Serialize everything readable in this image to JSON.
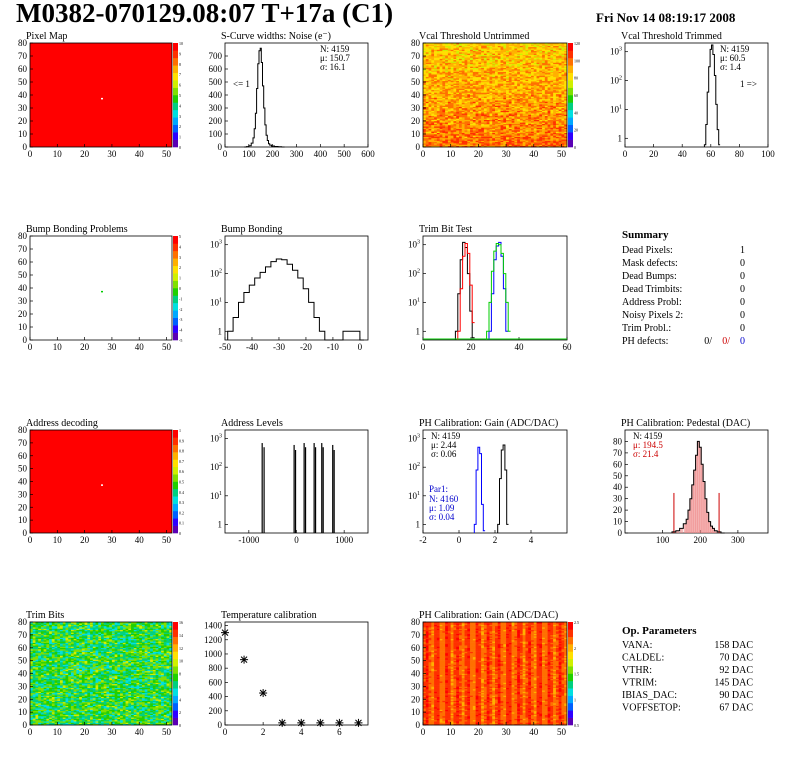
{
  "header": {
    "title": "M0382-070129.08:07 T+17a (C1)",
    "date": "Fri Nov 14 08:19:17 2008"
  },
  "panels": [
    {
      "id": "pixel-map",
      "title": "Pixel Map",
      "type": "heatmap",
      "fill": "red",
      "xlim": [
        0,
        52
      ],
      "ylim": [
        0,
        80
      ],
      "xticks": [
        0,
        10,
        20,
        30,
        40,
        50
      ],
      "yticks": [
        0,
        10,
        20,
        30,
        40,
        50,
        60,
        70,
        80
      ],
      "palette_ticks": [
        10,
        9,
        8,
        7,
        6,
        5,
        4,
        3,
        2,
        1,
        0
      ],
      "marks": [
        {
          "x": 26,
          "y": 37,
          "color": "#ffffff"
        }
      ]
    },
    {
      "id": "scurve-noise",
      "title": "S-Curve widths: Noise (e⁻)",
      "type": "histogram",
      "scale": "linear",
      "xlim": [
        0,
        600
      ],
      "ylim": [
        0,
        800
      ],
      "xticks": [
        0,
        100,
        200,
        300,
        400,
        500,
        600
      ],
      "yticks": [
        0,
        100,
        200,
        300,
        400,
        500,
        600,
        700
      ],
      "stats": [
        "N: 4159",
        "μ: 150.7",
        "σ: 16.1"
      ],
      "note": "<= 1",
      "bins": [
        [
          85,
          0
        ],
        [
          95,
          3
        ],
        [
          105,
          10
        ],
        [
          115,
          30
        ],
        [
          120,
          70
        ],
        [
          125,
          140
        ],
        [
          130,
          260
        ],
        [
          135,
          450
        ],
        [
          140,
          640
        ],
        [
          145,
          740
        ],
        [
          150,
          760
        ],
        [
          155,
          650
        ],
        [
          160,
          470
        ],
        [
          165,
          300
        ],
        [
          170,
          170
        ],
        [
          175,
          90
        ],
        [
          180,
          50
        ],
        [
          185,
          25
        ],
        [
          190,
          15
        ],
        [
          200,
          8
        ],
        [
          215,
          4
        ],
        [
          230,
          2
        ],
        [
          245,
          0
        ]
      ]
    },
    {
      "id": "vcal-untrimmed",
      "title": "Vcal Threshold Untrimmed",
      "type": "heatmap",
      "fill": "orange",
      "xlim": [
        0,
        52
      ],
      "ylim": [
        0,
        80
      ],
      "xticks": [
        0,
        10,
        20,
        30,
        40,
        50
      ],
      "yticks": [
        0,
        10,
        20,
        30,
        40,
        50,
        60,
        70,
        80
      ],
      "palette_ticks": [
        120,
        100,
        80,
        60,
        40,
        20,
        0
      ]
    },
    {
      "id": "vcal-trimmed",
      "title": "Vcal Threshold Trimmed",
      "type": "histogram",
      "scale": "log",
      "xlim": [
        0,
        100
      ],
      "ylim": [
        0.5,
        2000
      ],
      "xticks": [
        0,
        20,
        40,
        60,
        80,
        100
      ],
      "yticks": [
        1,
        10,
        100,
        1000
      ],
      "stats": [
        "N: 4159",
        "μ: 60.5",
        "σ: 1.4"
      ],
      "note": "1 =>",
      "bins": [
        [
          56,
          0.6
        ],
        [
          57,
          3
        ],
        [
          58,
          40
        ],
        [
          59,
          300
        ],
        [
          60,
          1200
        ],
        [
          61,
          1700
        ],
        [
          62,
          800
        ],
        [
          63,
          150
        ],
        [
          64,
          15
        ],
        [
          65,
          2
        ],
        [
          66,
          0.6
        ]
      ]
    },
    {
      "id": "bump-problems",
      "title": "Bump Bonding Problems",
      "type": "heatmap",
      "fill": "white",
      "xlim": [
        0,
        52
      ],
      "ylim": [
        0,
        80
      ],
      "xticks": [
        0,
        10,
        20,
        30,
        40,
        50
      ],
      "yticks": [
        0,
        10,
        20,
        30,
        40,
        50,
        60,
        70,
        80
      ],
      "palette_ticks": [
        5,
        4,
        3,
        2,
        1,
        0,
        -1,
        -2,
        -3,
        -4,
        -5
      ],
      "marks": [
        {
          "x": 26,
          "y": 37,
          "color": "#00cc00"
        }
      ]
    },
    {
      "id": "bump-bonding",
      "title": "Bump Bonding",
      "type": "histogram",
      "scale": "log",
      "xlim": [
        -50,
        3
      ],
      "ylim": [
        0.5,
        2000
      ],
      "xticks": [
        -50,
        -40,
        -30,
        -20,
        -10,
        0
      ],
      "yticks": [
        1,
        10,
        100,
        1000
      ],
      "bins": [
        [
          -48,
          1
        ],
        [
          -46,
          3
        ],
        [
          -44,
          10
        ],
        [
          -42,
          22
        ],
        [
          -40,
          40
        ],
        [
          -38,
          70
        ],
        [
          -36,
          110
        ],
        [
          -34,
          170
        ],
        [
          -32,
          260
        ],
        [
          -30,
          320
        ],
        [
          -28,
          300
        ],
        [
          -26,
          210
        ],
        [
          -24,
          130
        ],
        [
          -22,
          70
        ],
        [
          -20,
          30
        ],
        [
          -18,
          10
        ],
        [
          -16,
          3
        ],
        [
          -14,
          1
        ],
        [
          -12,
          0.5
        ],
        [
          -0.5,
          1
        ],
        [
          0.5,
          0.5
        ]
      ]
    },
    {
      "id": "trim-bit-test",
      "title": "Trim Bit Test",
      "type": "multi-histogram",
      "scale": "log",
      "xlim": [
        0,
        60
      ],
      "ylim": [
        0.5,
        2000
      ],
      "xticks": [
        0,
        20,
        40,
        60
      ],
      "yticks": [
        1,
        10,
        100,
        1000
      ],
      "series": [
        {
          "color": "#000000",
          "bins": [
            [
              14,
              1
            ],
            [
              15,
              20
            ],
            [
              16,
              300
            ],
            [
              17,
              1200
            ],
            [
              18,
              800
            ],
            [
              19,
              100
            ],
            [
              20,
              5
            ],
            [
              21,
              0.6
            ]
          ]
        },
        {
          "color": "#ff0000",
          "bins": [
            [
              15,
              1
            ],
            [
              16,
              30
            ],
            [
              17,
              400
            ],
            [
              18,
              1100
            ],
            [
              19,
              500
            ],
            [
              20,
              40
            ],
            [
              21,
              2
            ]
          ]
        },
        {
          "color": "#0000ff",
          "bins": [
            [
              28,
              1
            ],
            [
              29,
              20
            ],
            [
              30,
              300
            ],
            [
              31,
              900
            ],
            [
              32,
              1200
            ],
            [
              33,
              400
            ],
            [
              34,
              30
            ],
            [
              35,
              1
            ]
          ]
        },
        {
          "color": "#00cc00",
          "bins": [
            [
              27,
              1
            ],
            [
              28,
              10
            ],
            [
              29,
              120
            ],
            [
              30,
              600
            ],
            [
              31,
              1100
            ],
            [
              32,
              1000
            ],
            [
              33,
              500
            ],
            [
              34,
              100
            ],
            [
              35,
              10
            ],
            [
              36,
              1
            ]
          ]
        }
      ]
    },
    {
      "id": "address-decoding",
      "title": "Address decoding",
      "type": "heatmap",
      "fill": "red",
      "xlim": [
        0,
        52
      ],
      "ylim": [
        0,
        80
      ],
      "xticks": [
        0,
        10,
        20,
        30,
        40,
        50
      ],
      "yticks": [
        0,
        10,
        20,
        30,
        40,
        50,
        60,
        70,
        80
      ],
      "palette_ticks": [
        1,
        0.9,
        0.8,
        0.7,
        0.6,
        0.5,
        0.4,
        0.3,
        0.2,
        0.1,
        0
      ],
      "marks": [
        {
          "x": 26,
          "y": 37,
          "color": "#ffffff"
        }
      ]
    },
    {
      "id": "address-levels",
      "title": "Address Levels",
      "type": "spikes",
      "scale": "log",
      "xlim": [
        -1500,
        1500
      ],
      "ylim": [
        0.5,
        2000
      ],
      "xticks": [
        -1000,
        0,
        1000
      ],
      "yticks": [
        1,
        10,
        100,
        1000
      ],
      "spikes": [
        [
          -720,
          700
        ],
        [
          -680,
          500
        ],
        [
          -50,
          600
        ],
        [
          -20,
          400
        ],
        [
          160,
          700
        ],
        [
          190,
          500
        ],
        [
          370,
          700
        ],
        [
          400,
          500
        ],
        [
          530,
          700
        ],
        [
          560,
          500
        ],
        [
          760,
          600
        ],
        [
          790,
          400
        ]
      ]
    },
    {
      "id": "ph-gain",
      "title": "PH Calibration: Gain (ADC/DAC)",
      "type": "multi-histogram",
      "scale": "log",
      "xlim": [
        -2,
        6
      ],
      "ylim": [
        0.5,
        2000
      ],
      "xticks": [
        -2,
        0,
        2,
        4
      ],
      "yticks": [
        1,
        10,
        100,
        1000
      ],
      "stats": [
        "N: 4159",
        "μ: 2.44",
        "σ: 0.06"
      ],
      "stats2": {
        "title": "Par1:",
        "lines": [
          "N: 4160",
          "μ: 1.09",
          "σ: 0.04"
        ]
      },
      "series": [
        {
          "color": "#000000",
          "bins": [
            [
              2.2,
              1
            ],
            [
              2.3,
              40
            ],
            [
              2.4,
              400
            ],
            [
              2.5,
              600
            ],
            [
              2.6,
              80
            ],
            [
              2.7,
              1
            ]
          ]
        },
        {
          "color": "#0000ff",
          "bins": [
            [
              0.9,
              1
            ],
            [
              1.0,
              80
            ],
            [
              1.1,
              500
            ],
            [
              1.2,
              300
            ],
            [
              1.3,
              5
            ],
            [
              1.4,
              0.6
            ]
          ]
        }
      ]
    },
    {
      "id": "ph-pedestal",
      "title": "PH Calibration: Pedestal (DAC)",
      "type": "histogram",
      "scale": "linear",
      "xlim": [
        0,
        380
      ],
      "ylim": [
        0,
        90
      ],
      "xticks": [
        100,
        200,
        300
      ],
      "yticks": [
        0,
        10,
        20,
        30,
        40,
        50,
        60,
        70,
        80
      ],
      "stats": [
        "N: 4159",
        "μ: 194.5",
        "σ: 21.4"
      ],
      "bins": [
        [
          130,
          1
        ],
        [
          140,
          2
        ],
        [
          150,
          4
        ],
        [
          160,
          8
        ],
        [
          165,
          12
        ],
        [
          170,
          20
        ],
        [
          175,
          30
        ],
        [
          180,
          42
        ],
        [
          185,
          55
        ],
        [
          190,
          68
        ],
        [
          195,
          80
        ],
        [
          200,
          75
        ],
        [
          205,
          60
        ],
        [
          210,
          45
        ],
        [
          215,
          30
        ],
        [
          220,
          18
        ],
        [
          225,
          10
        ],
        [
          230,
          6
        ],
        [
          235,
          4
        ],
        [
          240,
          2
        ],
        [
          250,
          1
        ],
        [
          260,
          0
        ]
      ],
      "cut_lines": [
        130,
        250
      ]
    },
    {
      "id": "trim-bits",
      "title": "Trim Bits",
      "type": "heatmap",
      "fill": "green",
      "xlim": [
        0,
        52
      ],
      "ylim": [
        0,
        80
      ],
      "xticks": [
        0,
        10,
        20,
        30,
        40,
        50
      ],
      "yticks": [
        0,
        10,
        20,
        30,
        40,
        50,
        60,
        70,
        80
      ],
      "palette_ticks": [
        16,
        14,
        12,
        10,
        8,
        6,
        4,
        2,
        0
      ]
    },
    {
      "id": "temperature-calibration",
      "title": "Temperature calibration",
      "type": "scatter",
      "xlim": [
        0,
        7.5
      ],
      "ylim": [
        0,
        1450
      ],
      "xticks": [
        0,
        2,
        4,
        6
      ],
      "yticks": [
        0,
        200,
        400,
        600,
        800,
        1000,
        1200,
        1400
      ],
      "points": [
        [
          0,
          1300
        ],
        [
          1,
          920
        ],
        [
          2,
          450
        ],
        [
          3,
          30
        ],
        [
          4,
          30
        ],
        [
          5,
          30
        ],
        [
          6,
          30
        ],
        [
          7,
          30
        ]
      ]
    },
    {
      "id": "ph-gain-map",
      "title": "PH Calibration: Gain (ADC/DAC)",
      "type": "heatmap",
      "fill": "redmix",
      "xlim": [
        0,
        52
      ],
      "ylim": [
        0,
        80
      ],
      "xticks": [
        0,
        10,
        20,
        30,
        40,
        50
      ],
      "yticks": [
        0,
        10,
        20,
        30,
        40,
        50,
        60,
        70,
        80
      ],
      "palette_ticks": [
        2.5,
        2,
        1.5,
        1,
        0.5
      ]
    }
  ],
  "summary": {
    "title": "Summary",
    "rows": [
      {
        "label": "Dead Pixels:",
        "value": "1"
      },
      {
        "label": "Mask defects:",
        "value": "0"
      },
      {
        "label": "Dead Bumps:",
        "value": "0"
      },
      {
        "label": "Dead Trimbits:",
        "value": "0"
      },
      {
        "label": "Address Probl:",
        "value": "0"
      },
      {
        "label": "Noisy Pixels 2:",
        "value": "0"
      },
      {
        "label": "Trim Probl.:",
        "value": "0"
      }
    ],
    "ph_defects": {
      "label": "PH defects:",
      "values": [
        "0/",
        "0/",
        "0"
      ],
      "colors": [
        "#000000",
        "#cc0000",
        "#0000cc"
      ]
    }
  },
  "op_parameters": {
    "title": "Op. Parameters",
    "rows": [
      {
        "label": "VANA:",
        "value": "158 DAC"
      },
      {
        "label": "CALDEL:",
        "value": "70 DAC"
      },
      {
        "label": "VTHR:",
        "value": "92 DAC"
      },
      {
        "label": "VTRIM:",
        "value": "145 DAC"
      },
      {
        "label": "IBIAS_DAC:",
        "value": "90 DAC"
      },
      {
        "label": "VOFFSETOP:",
        "value": "67 DAC"
      }
    ]
  }
}
